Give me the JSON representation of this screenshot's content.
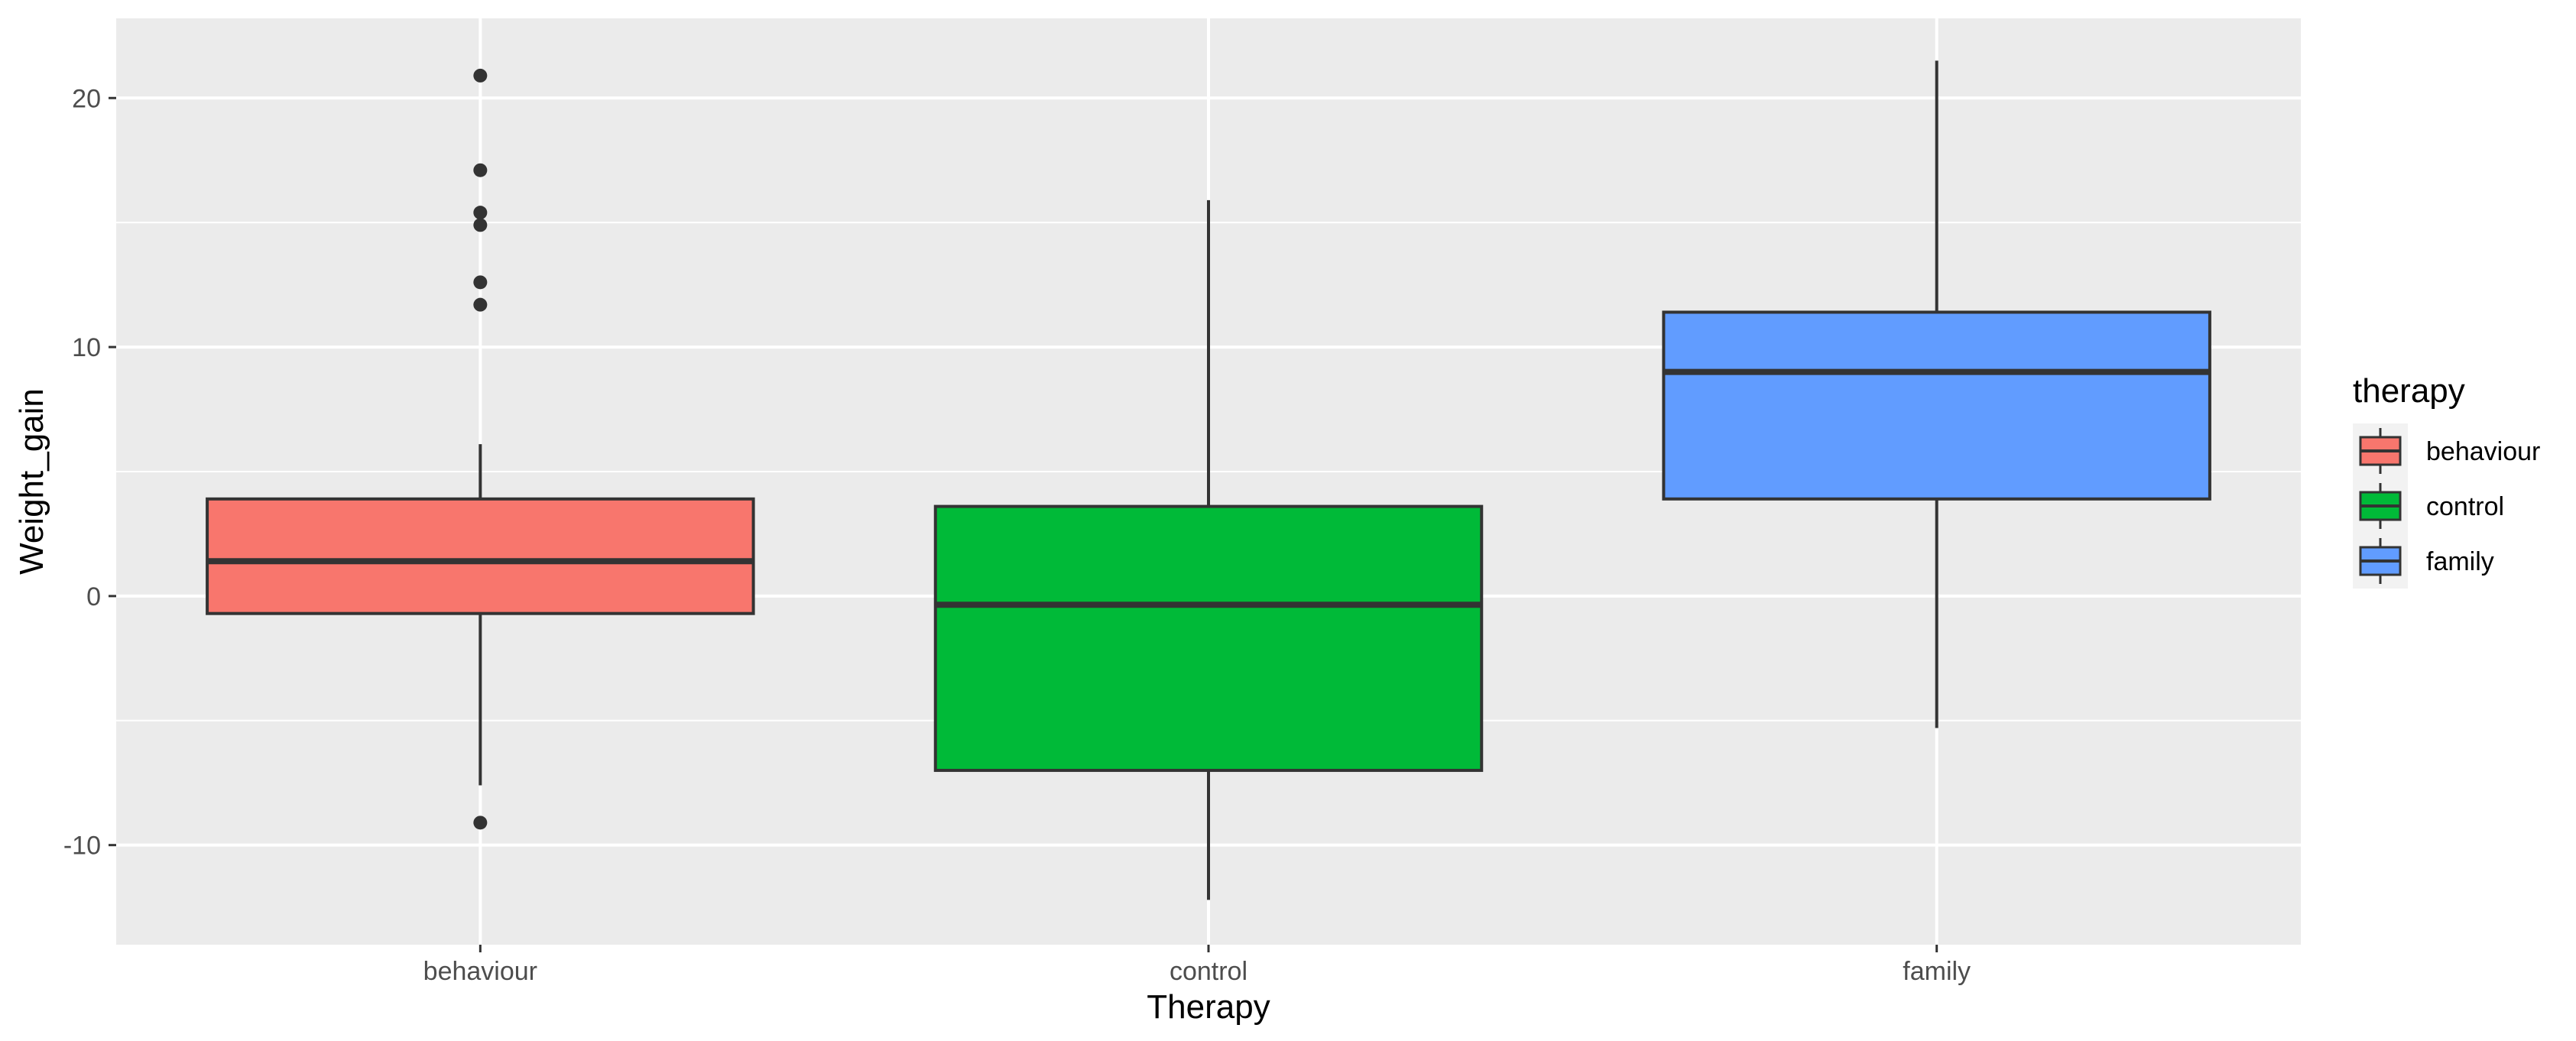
{
  "chart_data": {
    "type": "boxplot",
    "title": "",
    "xlabel": "Therapy",
    "ylabel": "Weight_gain",
    "ylim": [
      -14,
      23.2
    ],
    "y_ticks": [
      -10,
      0,
      10,
      20
    ],
    "y_tick_labels": [
      "-10",
      "0",
      "10",
      "20"
    ],
    "grid": true,
    "legend": {
      "title": "therapy",
      "position": "right"
    },
    "categories": [
      "behaviour",
      "control",
      "family"
    ],
    "boxes": [
      {
        "name": "behaviour",
        "color": "#F8766D",
        "whisker_low": -7.6,
        "q1": -0.7,
        "median": 1.4,
        "q3": 3.9,
        "whisker_high": 6.1,
        "outliers": [
          20.9,
          17.1,
          15.4,
          14.9,
          12.6,
          11.7,
          -9.1
        ]
      },
      {
        "name": "control",
        "color": "#00BA38",
        "whisker_low": -12.2,
        "q1": -7.0,
        "median": -0.35,
        "q3": 3.6,
        "whisker_high": 15.9,
        "outliers": []
      },
      {
        "name": "family",
        "color": "#619CFF",
        "whisker_low": -5.3,
        "q1": 3.9,
        "median": 9.0,
        "q3": 11.4,
        "whisker_high": 21.5,
        "outliers": []
      }
    ]
  }
}
